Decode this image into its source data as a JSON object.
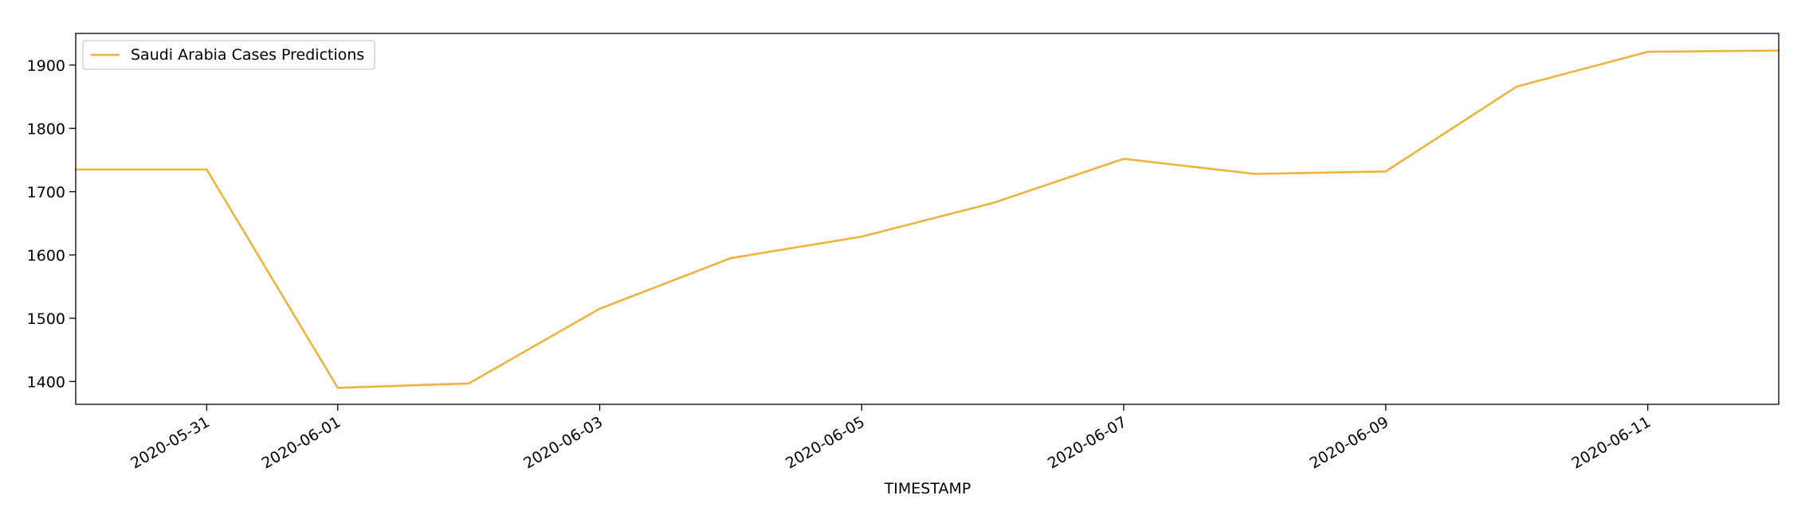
{
  "chart_data": {
    "type": "line",
    "title": "",
    "xlabel": "TIMESTAMP",
    "ylabel": "",
    "x": [
      "2020-05-30",
      "2020-05-31",
      "2020-06-01",
      "2020-06-02",
      "2020-06-03",
      "2020-06-04",
      "2020-06-05",
      "2020-06-06",
      "2020-06-07",
      "2020-06-08",
      "2020-06-09",
      "2020-06-10",
      "2020-06-11",
      "2020-06-12"
    ],
    "series": [
      {
        "name": "Saudi Arabia Cases Predictions",
        "color": "#f0b23e",
        "values": [
          1735,
          1735,
          1390,
          1397,
          1515,
          1595,
          1629,
          1682,
          1752,
          1728,
          1732,
          1866,
          1921,
          1923
        ]
      }
    ],
    "xlim": [
      "2020-05-30",
      "2020-06-12"
    ],
    "ylim": [
      1364,
      1950
    ],
    "xticks": [
      "2020-05-31",
      "2020-06-01",
      "2020-06-03",
      "2020-06-05",
      "2020-06-07",
      "2020-06-09",
      "2020-06-11"
    ],
    "yticks": [
      1400,
      1500,
      1600,
      1700,
      1800,
      1900
    ],
    "grid": false,
    "legend": "top-left"
  }
}
